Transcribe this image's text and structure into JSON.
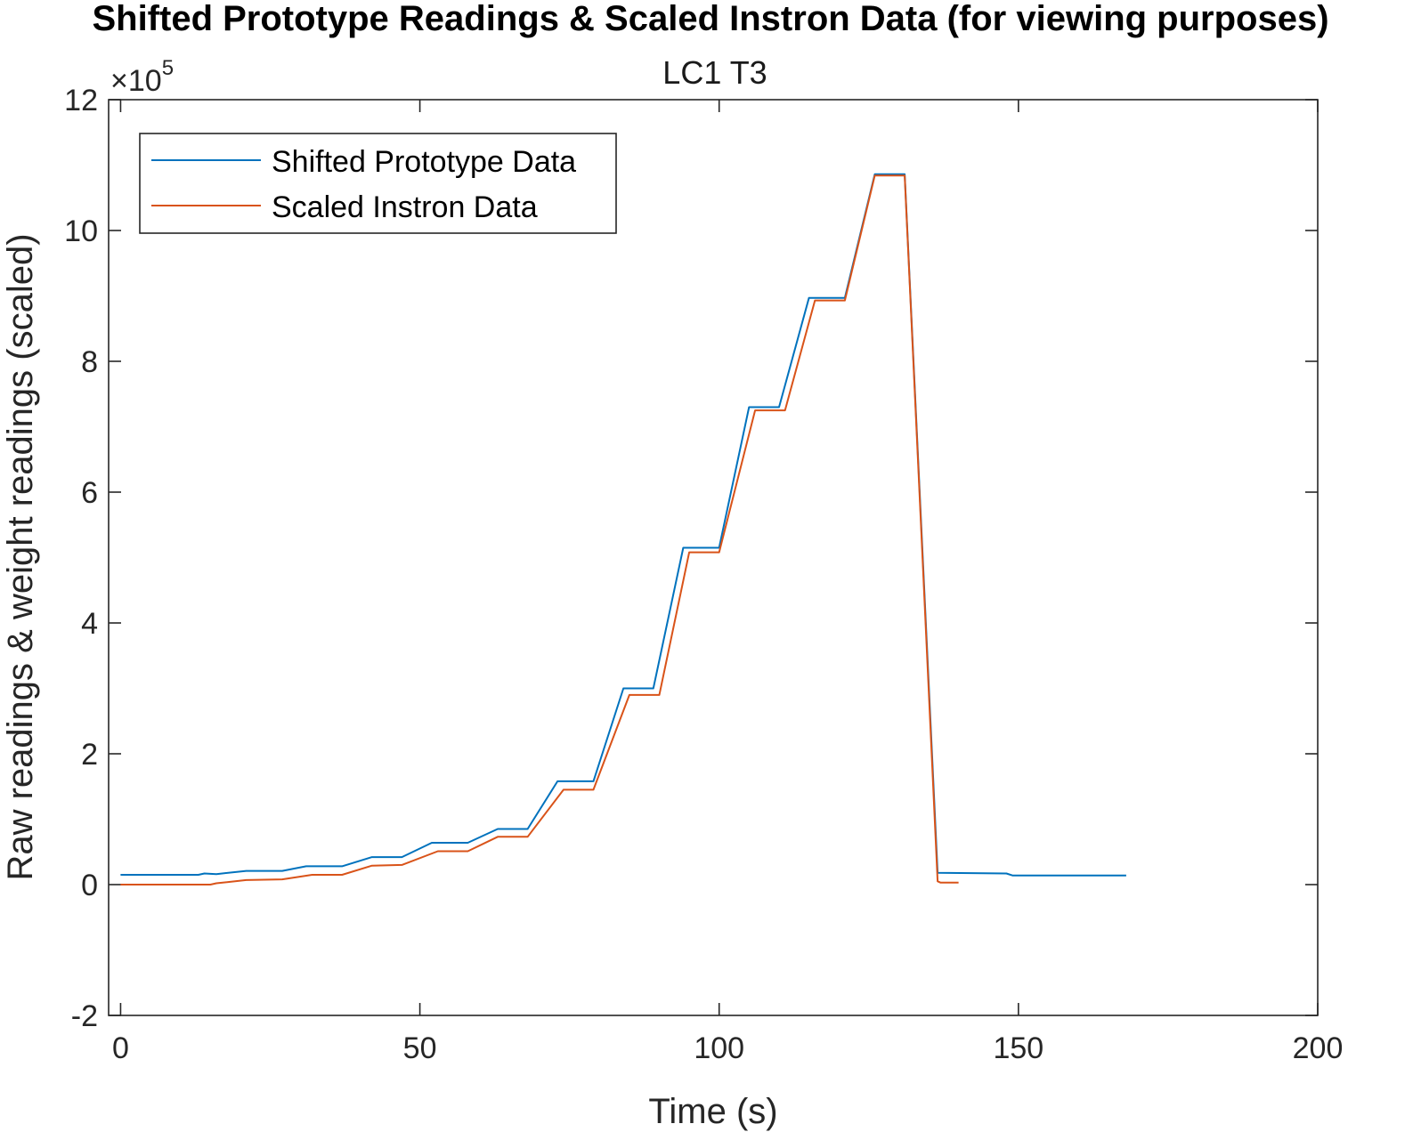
{
  "chart_data": {
    "type": "line",
    "title": "Shifted Prototype Readings & Scaled Instron Data (for viewing purposes)",
    "subtitle": "LC1 T3",
    "xlabel": "Time (s)",
    "ylabel": "Raw readings & weight readings (scaled)",
    "y_exponent_label": "×10",
    "y_exponent_power": "5",
    "xlim": [
      -2,
      200
    ],
    "ylim": [
      -2,
      12
    ],
    "y_scale_factor": 100000,
    "x_ticks": [
      0,
      50,
      100,
      150,
      200
    ],
    "x_tick_labels": [
      "0",
      "50",
      "100",
      "150",
      "200"
    ],
    "y_ticks": [
      -2,
      0,
      2,
      4,
      6,
      8,
      10,
      12
    ],
    "y_tick_labels": [
      "-2",
      "0",
      "2",
      "4",
      "6",
      "8",
      "10",
      "12"
    ],
    "grid": false,
    "legend_position": "top-left",
    "series": [
      {
        "name": "Shifted Prototype Data",
        "color": "#0072BD",
        "points": [
          [
            0,
            0.15
          ],
          [
            13,
            0.15
          ],
          [
            14,
            0.17
          ],
          [
            16,
            0.16
          ],
          [
            21,
            0.21
          ],
          [
            27,
            0.21
          ],
          [
            31,
            0.28
          ],
          [
            37,
            0.28
          ],
          [
            42,
            0.42
          ],
          [
            47,
            0.42
          ],
          [
            52,
            0.64
          ],
          [
            58,
            0.64
          ],
          [
            63,
            0.85
          ],
          [
            68,
            0.85
          ],
          [
            73,
            1.58
          ],
          [
            79,
            1.58
          ],
          [
            84,
            3.0
          ],
          [
            89,
            3.0
          ],
          [
            94,
            5.15
          ],
          [
            100,
            5.15
          ],
          [
            105,
            7.3
          ],
          [
            110,
            7.3
          ],
          [
            115,
            8.97
          ],
          [
            121,
            8.97
          ],
          [
            126,
            10.86
          ],
          [
            131,
            10.86
          ],
          [
            136.5,
            0.18
          ],
          [
            148,
            0.17
          ],
          [
            149,
            0.14
          ],
          [
            168,
            0.14
          ]
        ]
      },
      {
        "name": "Scaled Instron Data",
        "color": "#D95319",
        "points": [
          [
            0,
            0.0
          ],
          [
            15,
            0.0
          ],
          [
            16,
            0.02
          ],
          [
            21,
            0.07
          ],
          [
            27,
            0.08
          ],
          [
            32,
            0.15
          ],
          [
            37,
            0.15
          ],
          [
            42,
            0.29
          ],
          [
            47,
            0.3
          ],
          [
            53,
            0.51
          ],
          [
            58,
            0.51
          ],
          [
            63,
            0.73
          ],
          [
            68,
            0.73
          ],
          [
            74,
            1.45
          ],
          [
            79,
            1.45
          ],
          [
            85,
            2.9
          ],
          [
            90,
            2.9
          ],
          [
            95,
            5.08
          ],
          [
            100,
            5.08
          ],
          [
            106,
            7.25
          ],
          [
            111,
            7.25
          ],
          [
            116,
            8.93
          ],
          [
            121,
            8.93
          ],
          [
            126,
            10.84
          ],
          [
            131,
            10.84
          ],
          [
            136.5,
            0.05
          ],
          [
            137,
            0.03
          ],
          [
            140,
            0.03
          ]
        ]
      }
    ]
  }
}
